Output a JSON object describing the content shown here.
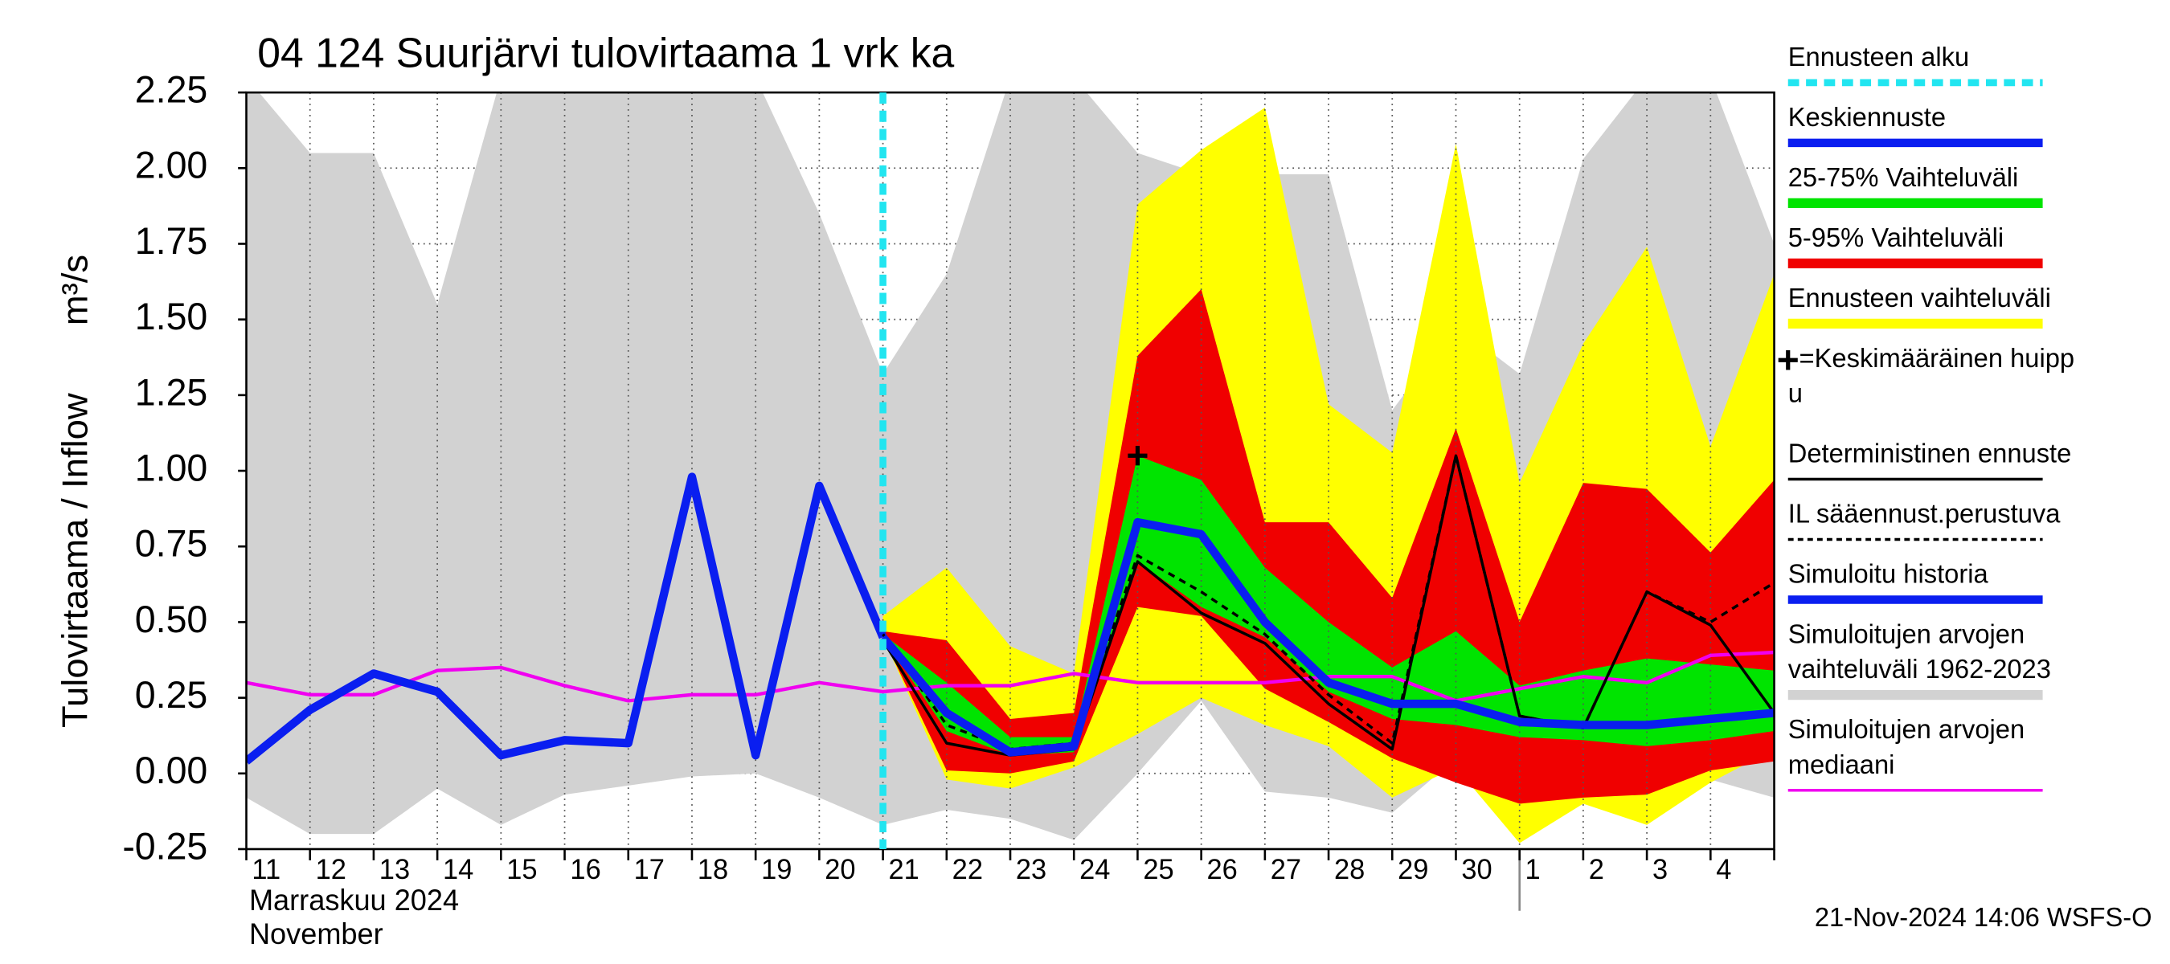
{
  "chart_data": {
    "type": "forecast_band",
    "title": "04 124 Suurjärvi tulovirtaama 1 vrk ka",
    "y_label": "Tulovirtaama / Inflow",
    "y_unit": "m³/s",
    "x_month_fi": "Marraskuu 2024",
    "x_month_en": "November",
    "timestamp": "21-Nov-2024 14:06 WSFS-O",
    "categories": [
      "11",
      "12",
      "13",
      "14",
      "15",
      "16",
      "17",
      "18",
      "19",
      "20",
      "21",
      "22",
      "23",
      "24",
      "25",
      "26",
      "27",
      "28",
      "29",
      "30",
      "1",
      "2",
      "3",
      "4",
      null
    ],
    "ylim": [
      -0.25,
      2.25
    ],
    "yticks": [
      -0.25,
      {
        "value": 0,
        "label": "0.00"
      },
      0.25,
      {
        "value": 0.5,
        "label": "0.50"
      },
      0.75,
      {
        "value": 1,
        "label": "1.00"
      },
      1.25,
      {
        "value": 1.5,
        "label": "1.50"
      },
      1.75,
      {
        "value": 2,
        "label": "2.00"
      },
      2.25
    ],
    "grid": true,
    "forecast_start": 10,
    "series": [
      {
        "name": [
          "Ennusteen alku"
        ],
        "kind": "vline",
        "color": "#22e5f0"
      },
      {
        "name": [
          "Keskiennuste"
        ],
        "kind": "line",
        "color": "#0a1ef0",
        "width": 6,
        "values": [
          null,
          null,
          null,
          null,
          null,
          null,
          null,
          null,
          null,
          null,
          0.45,
          0.2,
          0.07,
          0.09,
          0.83,
          0.79,
          0.5,
          0.3,
          0.23,
          0.23,
          0.17,
          0.16,
          0.16,
          0.18,
          0.2
        ]
      },
      {
        "name": [
          "25-75% Vaihteluväli"
        ],
        "kind": "band",
        "color": "#00e400",
        "upper": [
          null,
          null,
          null,
          null,
          null,
          null,
          null,
          null,
          null,
          null,
          0.46,
          0.3,
          0.12,
          0.12,
          1.05,
          0.97,
          0.68,
          0.5,
          0.35,
          0.47,
          0.29,
          0.34,
          0.38,
          0.36,
          0.34
        ],
        "lower": [
          null,
          null,
          null,
          null,
          null,
          null,
          null,
          null,
          null,
          null,
          0.45,
          0.14,
          0.06,
          0.07,
          0.7,
          0.55,
          0.45,
          0.27,
          0.18,
          0.16,
          0.12,
          0.11,
          0.09,
          0.11,
          0.14
        ]
      },
      {
        "name": [
          "5-95% Vaihteluväli"
        ],
        "kind": "band",
        "color": "#f00000",
        "upper": [
          null,
          null,
          null,
          null,
          null,
          null,
          null,
          null,
          null,
          null,
          0.47,
          0.44,
          0.18,
          0.2,
          1.38,
          1.6,
          0.83,
          0.83,
          0.58,
          1.14,
          0.5,
          0.96,
          0.94,
          0.73,
          0.97
        ],
        "lower": [
          null,
          null,
          null,
          null,
          null,
          null,
          null,
          null,
          null,
          null,
          0.45,
          0.01,
          0,
          0.04,
          0.55,
          0.52,
          0.28,
          0.17,
          0.05,
          -0.03,
          -0.1,
          -0.08,
          -0.07,
          0.01,
          0.04
        ]
      },
      {
        "name": [
          "Ennusteen vaihteluväli"
        ],
        "kind": "band",
        "color": "#ffff00",
        "upper": [
          null,
          null,
          null,
          null,
          null,
          null,
          null,
          null,
          null,
          null,
          0.52,
          0.68,
          0.42,
          0.33,
          1.88,
          2.06,
          2.2,
          1.22,
          1.06,
          2.08,
          0.96,
          1.42,
          1.74,
          1.08,
          1.65
        ],
        "lower": [
          null,
          null,
          null,
          null,
          null,
          null,
          null,
          null,
          null,
          null,
          0.45,
          -0.02,
          -0.05,
          0.02,
          0.13,
          0.25,
          0.16,
          0.09,
          -0.08,
          0.02,
          -0.23,
          -0.1,
          -0.17,
          -0.03,
          0.08
        ]
      },
      {
        "name": [
          "=Keskimääräinen huipp",
          "u"
        ],
        "kind": "marker",
        "color": "#000000",
        "values": [
          null,
          null,
          null,
          null,
          null,
          null,
          null,
          null,
          null,
          null,
          null,
          null,
          null,
          null,
          1.05,
          null,
          null,
          null,
          null,
          null,
          null,
          null,
          null,
          null,
          null
        ]
      },
      {
        "name": [
          "Deterministinen ennuste"
        ],
        "kind": "line",
        "color": "#000000",
        "width": 2,
        "values": [
          null,
          null,
          null,
          null,
          null,
          null,
          null,
          null,
          null,
          null,
          0.44,
          0.1,
          0.06,
          0.08,
          0.7,
          0.53,
          0.43,
          0.23,
          0.08,
          1.05,
          0.19,
          0.15,
          0.6,
          0.49,
          0.2
        ]
      },
      {
        "name": [
          "IL sääennust.perustuva"
        ],
        "kind": "line",
        "color": "#000000",
        "width": 2,
        "dashed": true,
        "values": [
          null,
          null,
          null,
          null,
          null,
          null,
          null,
          null,
          null,
          null,
          0.46,
          0.16,
          0.08,
          0.1,
          0.72,
          0.6,
          0.46,
          0.26,
          0.1,
          1.05,
          0.19,
          0.15,
          0.6,
          0.5,
          0.63
        ]
      },
      {
        "name": [
          "Simuloitu historia"
        ],
        "kind": "line",
        "color": "#0a1ef0",
        "width": 6,
        "values": [
          0.04,
          0.21,
          0.33,
          0.27,
          0.06,
          0.11,
          0.1,
          0.98,
          0.06,
          0.95,
          0.45,
          null,
          null,
          null,
          null,
          null,
          null,
          null,
          null,
          null,
          null,
          null,
          null,
          null,
          null
        ]
      },
      {
        "name": [
          "Simuloitujen arvojen",
          "vaihteluväli 1962-2023"
        ],
        "kind": "band",
        "color": "#d2d2d2",
        "upper": [
          2.3,
          2.05,
          2.05,
          1.55,
          2.3,
          2.3,
          2.3,
          2.3,
          2.3,
          1.85,
          1.32,
          1.65,
          2.3,
          2.3,
          2.05,
          1.98,
          1.98,
          1.98,
          1.2,
          1.48,
          1.32,
          2.03,
          2.3,
          2.3,
          1.75
        ],
        "lower": [
          -0.08,
          -0.2,
          -0.2,
          -0.05,
          -0.17,
          -0.07,
          -0.04,
          -0.01,
          0,
          -0.08,
          -0.17,
          -0.12,
          -0.15,
          -0.22,
          0,
          0.24,
          -0.06,
          -0.08,
          -0.13,
          0.05,
          0.04,
          0.08,
          0.01,
          -0.02,
          -0.08
        ]
      },
      {
        "name": [
          "Simuloitujen arvojen",
          "mediaani"
        ],
        "kind": "line",
        "color": "#f000f0",
        "width": 2.5,
        "values": [
          0.3,
          0.26,
          0.26,
          0.34,
          0.35,
          0.29,
          0.24,
          0.26,
          0.26,
          0.3,
          0.27,
          0.29,
          0.29,
          0.33,
          0.3,
          0.3,
          0.3,
          0.32,
          0.32,
          0.24,
          0.28,
          0.32,
          0.3,
          0.39,
          0.4
        ]
      }
    ]
  }
}
